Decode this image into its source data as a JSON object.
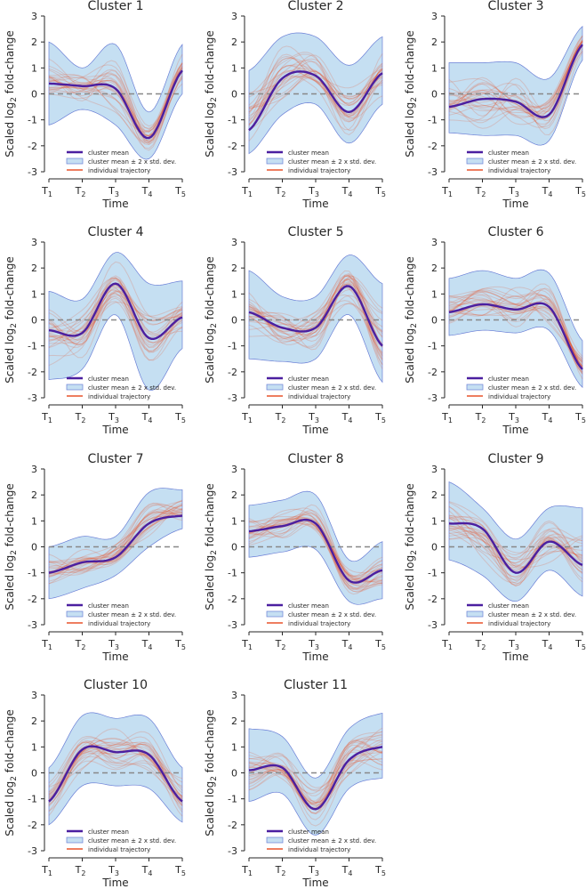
{
  "figure": {
    "ylabel": "Scaled log",
    "ylabel_sub": "2",
    "ylabel_suffix": " fold-change",
    "xlabel": "Time",
    "legend": [
      "cluster mean",
      "cluster mean ± 2 x std. dev.",
      "individual trajectory"
    ],
    "x_ticks": [
      "T",
      "T",
      "T",
      "T",
      "T"
    ],
    "x_tick_subs": [
      "1",
      "2",
      "3",
      "4",
      "5"
    ],
    "y_ticks": [
      3,
      2,
      1,
      0,
      -1,
      -2,
      -3
    ],
    "colors": {
      "mean": "#4b1fa0",
      "band": "#c5dff2",
      "band_edge": "#6a7fd6",
      "trajectory": "#e8532b",
      "zero": "#888888"
    }
  },
  "chart_data": [
    {
      "type": "line",
      "title": "Cluster 1",
      "ylim": [
        -3,
        3
      ],
      "x": [
        1,
        2,
        3,
        4,
        5
      ],
      "mean": [
        0.4,
        0.3,
        0.2,
        -1.7,
        0.9
      ],
      "band_upper": [
        2.0,
        1.0,
        1.9,
        -0.7,
        1.9
      ],
      "band_lower": [
        -1.2,
        -0.6,
        -1.2,
        -2.5,
        0.0
      ]
    },
    {
      "type": "line",
      "title": "Cluster 2",
      "ylim": [
        -3,
        3
      ],
      "x": [
        1,
        2,
        3,
        4,
        5
      ],
      "mean": [
        -1.4,
        0.6,
        0.7,
        -0.7,
        0.8
      ],
      "band_upper": [
        0.9,
        2.2,
        2.2,
        1.1,
        2.2
      ],
      "band_lower": [
        -2.3,
        -0.8,
        -0.4,
        -1.9,
        -0.4
      ]
    },
    {
      "type": "line",
      "title": "Cluster 3",
      "ylim": [
        -3,
        3
      ],
      "x": [
        1,
        2,
        3,
        4,
        5
      ],
      "mean": [
        -0.5,
        -0.2,
        -0.3,
        -0.8,
        1.9
      ],
      "band_upper": [
        1.2,
        1.2,
        1.2,
        0.6,
        2.6
      ],
      "band_lower": [
        -1.5,
        -1.6,
        -1.6,
        -1.8,
        1.3
      ]
    },
    {
      "type": "line",
      "title": "Cluster 4",
      "ylim": [
        -3,
        3
      ],
      "x": [
        1,
        2,
        3,
        4,
        5
      ],
      "mean": [
        -0.4,
        -0.5,
        1.4,
        -0.7,
        0.1
      ],
      "band_upper": [
        1.1,
        0.8,
        2.6,
        1.4,
        1.5
      ],
      "band_lower": [
        -2.3,
        -1.9,
        0.2,
        -2.7,
        -1.1
      ]
    },
    {
      "type": "line",
      "title": "Cluster 5",
      "ylim": [
        -3,
        3
      ],
      "x": [
        1,
        2,
        3,
        4,
        5
      ],
      "mean": [
        0.3,
        -0.3,
        -0.3,
        1.3,
        -1.0
      ],
      "band_upper": [
        1.9,
        0.9,
        0.9,
        2.5,
        1.4
      ],
      "band_lower": [
        -1.5,
        -1.6,
        -1.5,
        0.2,
        -2.4
      ]
    },
    {
      "type": "line",
      "title": "Cluster 6",
      "ylim": [
        -3,
        3
      ],
      "x": [
        1,
        2,
        3,
        4,
        5
      ],
      "mean": [
        0.3,
        0.6,
        0.4,
        0.5,
        -1.9
      ],
      "band_upper": [
        1.6,
        1.9,
        1.6,
        1.8,
        -0.8
      ],
      "band_lower": [
        -0.6,
        -0.4,
        -0.5,
        -0.4,
        -2.6
      ]
    },
    {
      "type": "line",
      "title": "Cluster 7",
      "ylim": [
        -3,
        3
      ],
      "x": [
        1,
        2,
        3,
        4,
        5
      ],
      "mean": [
        -1.0,
        -0.6,
        -0.4,
        0.9,
        1.2
      ],
      "band_upper": [
        0.0,
        0.4,
        0.4,
        2.1,
        2.2
      ],
      "band_lower": [
        -2.0,
        -1.6,
        -1.1,
        0.0,
        0.7
      ]
    },
    {
      "type": "line",
      "title": "Cluster 8",
      "ylim": [
        -3,
        3
      ],
      "x": [
        1,
        2,
        3,
        4,
        5
      ],
      "mean": [
        0.6,
        0.8,
        0.9,
        -1.3,
        -0.9
      ],
      "band_upper": [
        1.6,
        1.8,
        2.0,
        -0.5,
        0.2
      ],
      "band_lower": [
        -0.4,
        -0.2,
        -0.1,
        -2.1,
        -2.0
      ]
    },
    {
      "type": "line",
      "title": "Cluster 9",
      "ylim": [
        -3,
        3
      ],
      "x": [
        1,
        2,
        3,
        4,
        5
      ],
      "mean": [
        0.9,
        0.7,
        -1.0,
        0.2,
        -0.7
      ],
      "band_upper": [
        2.5,
        1.5,
        0.3,
        1.5,
        1.5
      ],
      "band_lower": [
        -0.5,
        -1.1,
        -2.1,
        -0.9,
        -1.9
      ]
    },
    {
      "type": "line",
      "title": "Cluster 10",
      "ylim": [
        -3,
        3
      ],
      "x": [
        1,
        2,
        3,
        4,
        5
      ],
      "mean": [
        -1.1,
        0.9,
        0.8,
        0.7,
        -1.1
      ],
      "band_upper": [
        0.2,
        2.2,
        2.1,
        2.1,
        0.2
      ],
      "band_lower": [
        -2.0,
        -0.5,
        -0.5,
        -0.6,
        -1.9
      ]
    },
    {
      "type": "line",
      "title": "Cluster 11",
      "ylim": [
        -3,
        3
      ],
      "x": [
        1,
        2,
        3,
        4,
        5
      ],
      "mean": [
        0.1,
        0.2,
        -1.4,
        0.5,
        1.0
      ],
      "band_upper": [
        1.7,
        1.4,
        -0.2,
        1.7,
        2.3
      ],
      "band_lower": [
        -1.1,
        -0.8,
        -2.4,
        -0.6,
        -0.2
      ]
    }
  ]
}
